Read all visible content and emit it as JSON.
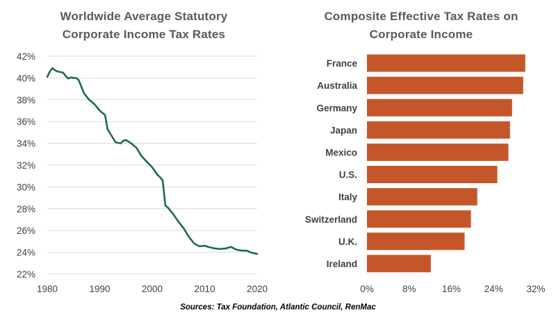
{
  "chart_data": [
    {
      "type": "line",
      "title_lines": [
        "Worldwide Average Statutory",
        "Corporate Income Tax Rates"
      ],
      "xlabel": "",
      "ylabel": "",
      "xlim": [
        1980,
        2020
      ],
      "ylim": [
        22,
        42
      ],
      "x_ticks": [
        1980,
        1990,
        2000,
        2010,
        2020
      ],
      "y_ticks": [
        22,
        24,
        26,
        28,
        30,
        32,
        34,
        36,
        38,
        40,
        42
      ],
      "y_tick_labels": [
        "22%",
        "24%",
        "26%",
        "28%",
        "30%",
        "32%",
        "34%",
        "36%",
        "38%",
        "40%",
        "42%"
      ],
      "grid": "horizontal",
      "line_color": "#1a6b4a",
      "series": [
        {
          "name": "Worldwide average statutory rate",
          "x": [
            1980,
            1980.5,
            1981,
            1981.5,
            1982,
            1983,
            1983.5,
            1984,
            1984.5,
            1985,
            1985.5,
            1986,
            1987,
            1988,
            1989,
            1990,
            1991,
            1991.5,
            1992,
            1993,
            1994,
            1994.5,
            1995,
            1996,
            1997,
            1998,
            1999,
            2000,
            2001,
            2001.5,
            2002,
            2002.5,
            2003,
            2004,
            2005,
            2006,
            2007,
            2008,
            2009,
            2010,
            2011,
            2012,
            2013,
            2014,
            2015,
            2016,
            2017,
            2018,
            2019,
            2020
          ],
          "y": [
            40.1,
            40.6,
            40.9,
            40.7,
            40.6,
            40.5,
            40.2,
            39.95,
            40.05,
            40.0,
            40.0,
            39.8,
            38.6,
            38.0,
            37.6,
            37.0,
            36.6,
            35.3,
            34.9,
            34.1,
            34.0,
            34.25,
            34.3,
            34.0,
            33.6,
            32.8,
            32.3,
            31.8,
            31.1,
            30.9,
            30.6,
            28.3,
            28.1,
            27.5,
            26.8,
            26.2,
            25.4,
            24.8,
            24.55,
            24.6,
            24.45,
            24.35,
            24.3,
            24.35,
            24.5,
            24.25,
            24.15,
            24.15,
            23.95,
            23.85
          ]
        }
      ]
    },
    {
      "type": "bar",
      "orientation": "horizontal",
      "title_lines": [
        "Composite Effective Tax Rates on",
        "Corporate Income"
      ],
      "xlabel": "",
      "ylabel": "",
      "xlim": [
        0,
        32
      ],
      "x_ticks": [
        0,
        8,
        16,
        24,
        32
      ],
      "x_tick_labels": [
        "0%",
        "8%",
        "16%",
        "24%",
        "32%"
      ],
      "bar_color": "#c5562a",
      "categories": [
        "France",
        "Australia",
        "Germany",
        "Japan",
        "Mexico",
        "U.S.",
        "Italy",
        "Switzerland",
        "U.K.",
        "Ireland"
      ],
      "values": [
        30.0,
        29.6,
        27.5,
        27.1,
        26.8,
        24.7,
        20.9,
        19.7,
        18.5,
        12.1
      ]
    }
  ],
  "source": "Sources: Tax Foundation, Atlantic Council, RenMac"
}
